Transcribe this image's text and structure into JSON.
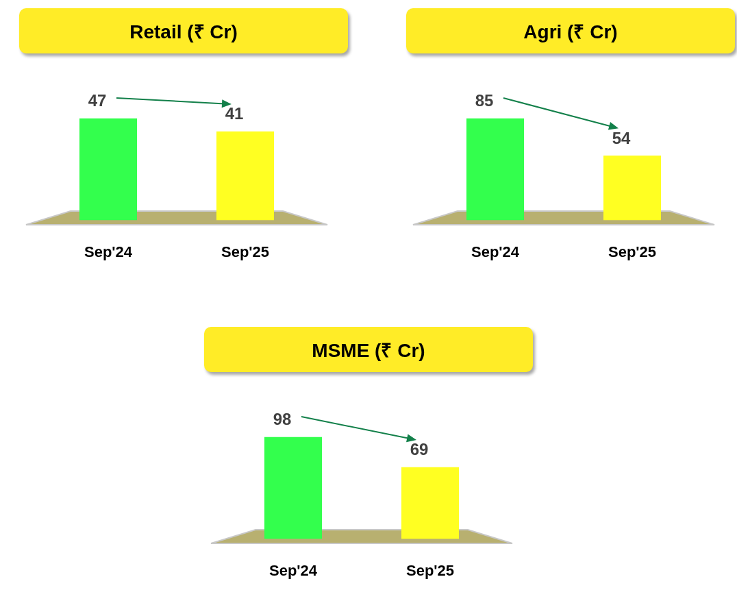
{
  "chart_data": [
    {
      "type": "bar",
      "title": "Retail (₹ Cr)",
      "categories": [
        "Sep'24",
        "Sep'25"
      ],
      "values": [
        47,
        41
      ],
      "colors": [
        "#33ff4d",
        "#ffff22"
      ],
      "data_labels": true
    },
    {
      "type": "bar",
      "title": "Agri (₹ Cr)",
      "categories": [
        "Sep'24",
        "Sep'25"
      ],
      "values": [
        85,
        54
      ],
      "colors": [
        "#33ff4d",
        "#ffff22"
      ],
      "data_labels": true
    },
    {
      "type": "bar",
      "title": "MSME (₹ Cr)",
      "categories": [
        "Sep'24",
        "Sep'25"
      ],
      "values": [
        98,
        69
      ],
      "colors": [
        "#33ff4d",
        "#ffff22"
      ],
      "data_labels": true
    }
  ]
}
